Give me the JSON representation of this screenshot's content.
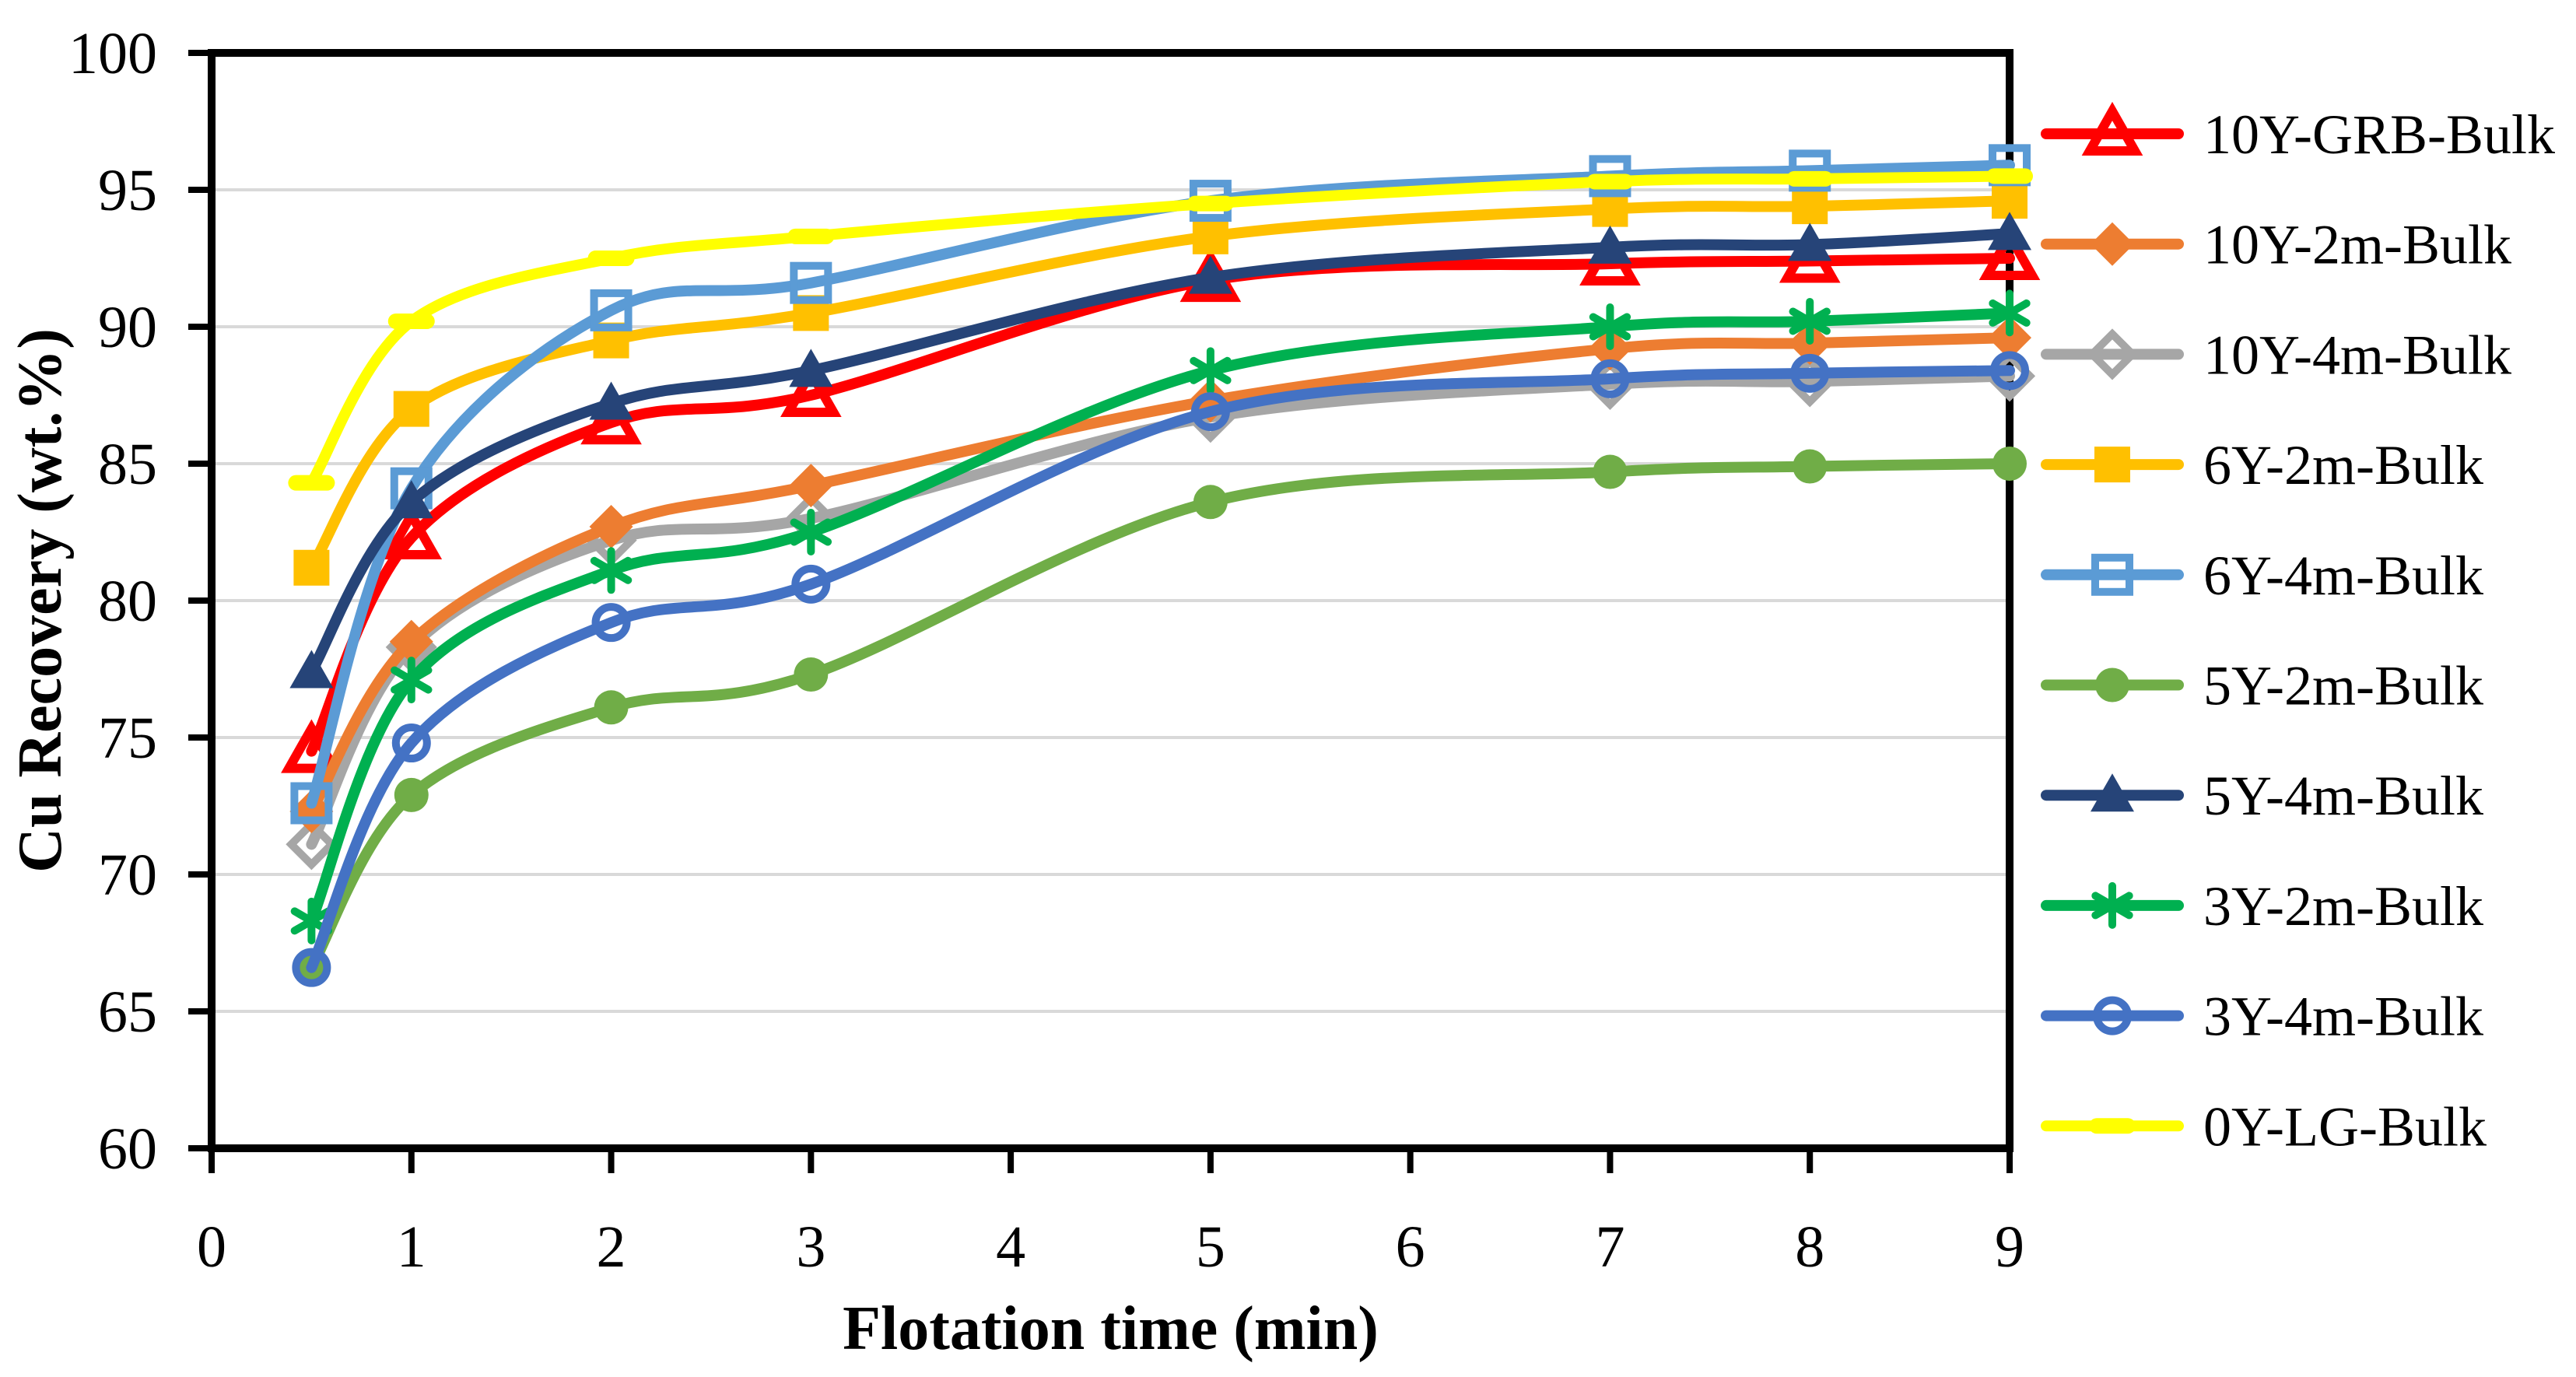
{
  "figure": {
    "kind": "excel-style-line-chart",
    "background": "#ffffff"
  },
  "chart_data": {
    "type": "line",
    "title": "",
    "xlabel": "Flotation time (min)",
    "ylabel": "Cu Recovery (wt.%)",
    "x": [
      0.5,
      1,
      2,
      3,
      5,
      7,
      8,
      9
    ],
    "xlim": [
      0,
      9
    ],
    "ylim": [
      60,
      100
    ],
    "x_ticks": [
      0,
      1,
      2,
      3,
      4,
      5,
      6,
      7,
      8,
      9
    ],
    "y_ticks": [
      60,
      65,
      70,
      75,
      80,
      85,
      90,
      95,
      100
    ],
    "grid": "horizontal",
    "smooth_lines": true,
    "gridline_color": "#D9D9D9",
    "axis_color": "#000000",
    "tick_label_color": "#000000",
    "legend_position": "right",
    "series": [
      {
        "name": "10Y-GRB-Bulk",
        "color": "#FF0000",
        "marker": "triangle-open",
        "values": [
          74.5,
          82.3,
          86.5,
          87.5,
          91.7,
          92.3,
          92.4,
          92.5
        ]
      },
      {
        "name": "10Y-2m-Bulk",
        "color": "#ED7D31",
        "marker": "diamond-filled",
        "values": [
          72.3,
          78.5,
          82.7,
          84.2,
          87.3,
          89.2,
          89.4,
          89.6
        ]
      },
      {
        "name": "10Y-4m-Bulk",
        "color": "#A6A6A6",
        "marker": "diamond-open",
        "values": [
          71.1,
          78.3,
          82.2,
          83.0,
          86.7,
          87.9,
          88.0,
          88.2
        ]
      },
      {
        "name": "6Y-2m-Bulk",
        "color": "#FFC000",
        "marker": "square-filled",
        "values": [
          81.2,
          87.0,
          89.5,
          90.5,
          93.3,
          94.3,
          94.4,
          94.6
        ]
      },
      {
        "name": "6Y-4m-Bulk",
        "color": "#5B9BD5",
        "marker": "square-open",
        "values": [
          72.6,
          84.1,
          90.6,
          91.6,
          94.6,
          95.5,
          95.7,
          95.9
        ]
      },
      {
        "name": "5Y-2m-Bulk",
        "color": "#70AD47",
        "marker": "circle-filled",
        "values": [
          66.6,
          72.9,
          76.1,
          77.3,
          83.6,
          84.7,
          84.9,
          85.0
        ]
      },
      {
        "name": "5Y-4m-Bulk",
        "color": "#264478",
        "marker": "triangle-filled",
        "values": [
          77.4,
          83.6,
          87.2,
          88.4,
          91.8,
          92.9,
          93.0,
          93.4
        ]
      },
      {
        "name": "3Y-2m-Bulk",
        "color": "#00B050",
        "marker": "asterisk",
        "values": [
          68.3,
          77.1,
          81.1,
          82.5,
          88.4,
          90.0,
          90.2,
          90.5
        ]
      },
      {
        "name": "3Y-4m-Bulk",
        "color": "#4472C4",
        "marker": "circle-open",
        "values": [
          66.6,
          74.8,
          79.2,
          80.6,
          86.9,
          88.1,
          88.3,
          88.4
        ]
      },
      {
        "name": "0Y-LG-Bulk",
        "color": "#FFFF00",
        "marker": "dash",
        "values": [
          84.3,
          90.2,
          92.5,
          93.3,
          94.5,
          95.3,
          95.4,
          95.5
        ]
      }
    ],
    "draw_order": [
      0,
      2,
      1,
      3,
      4,
      5,
      6,
      7,
      8,
      9
    ],
    "legend_labels": [
      "10Y-GRB-Bulk",
      "10Y-2m-Bulk",
      "10Y-4m-Bulk",
      "6Y-2m-Bulk",
      "6Y-4m-Bulk",
      "5Y-2m-Bulk",
      "5Y-4m-Bulk",
      "3Y-2m-Bulk",
      "3Y-4m-Bulk",
      "0Y-LG-Bulk"
    ]
  }
}
